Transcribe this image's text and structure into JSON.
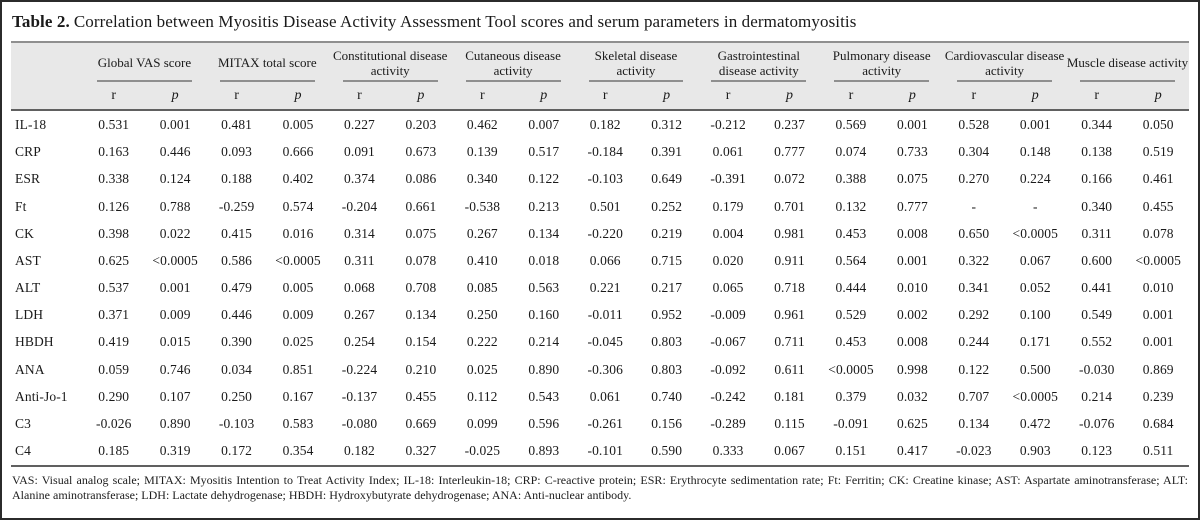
{
  "title": {
    "label": "Table 2.",
    "caption": "Correlation between Myositis Disease Activity Assessment Tool scores and serum parameters in dermatomyositis"
  },
  "colors": {
    "header_bg": "#e8e8e8",
    "rule_light": "#8f8f8f",
    "rule_dark": "#606060",
    "text": "#1a1a1a"
  },
  "table": {
    "groups": [
      "Global VAS score",
      "MITAX total score",
      "Constitutional disease activity",
      "Cutaneous disease activity",
      "Skeletal disease activity",
      "Gastrointestinal disease activity",
      "Pulmonary disease activity",
      "Cardiovascular disease activity",
      "Muscle disease activity"
    ],
    "subheaders": {
      "r": "r",
      "p": "p"
    },
    "rows": [
      {
        "label": "IL-18",
        "values": [
          "0.531",
          "0.001",
          "0.481",
          "0.005",
          "0.227",
          "0.203",
          "0.462",
          "0.007",
          "0.182",
          "0.312",
          "-0.212",
          "0.237",
          "0.569",
          "0.001",
          "0.528",
          "0.001",
          "0.344",
          "0.050"
        ]
      },
      {
        "label": "CRP",
        "values": [
          "0.163",
          "0.446",
          "0.093",
          "0.666",
          "0.091",
          "0.673",
          "0.139",
          "0.517",
          "-0.184",
          "0.391",
          "0.061",
          "0.777",
          "0.074",
          "0.733",
          "0.304",
          "0.148",
          "0.138",
          "0.519"
        ]
      },
      {
        "label": "ESR",
        "values": [
          "0.338",
          "0.124",
          "0.188",
          "0.402",
          "0.374",
          "0.086",
          "0.340",
          "0.122",
          "-0.103",
          "0.649",
          "-0.391",
          "0.072",
          "0.388",
          "0.075",
          "0.270",
          "0.224",
          "0.166",
          "0.461"
        ]
      },
      {
        "label": "Ft",
        "values": [
          "0.126",
          "0.788",
          "-0.259",
          "0.574",
          "-0.204",
          "0.661",
          "-0.538",
          "0.213",
          "0.501",
          "0.252",
          "0.179",
          "0.701",
          "0.132",
          "0.777",
          "-",
          "-",
          "0.340",
          "0.455"
        ]
      },
      {
        "label": "CK",
        "values": [
          "0.398",
          "0.022",
          "0.415",
          "0.016",
          "0.314",
          "0.075",
          "0.267",
          "0.134",
          "-0.220",
          "0.219",
          "0.004",
          "0.981",
          "0.453",
          "0.008",
          "0.650",
          "<0.0005",
          "0.311",
          "0.078"
        ]
      },
      {
        "label": "AST",
        "values": [
          "0.625",
          "<0.0005",
          "0.586",
          "<0.0005",
          "0.311",
          "0.078",
          "0.410",
          "0.018",
          "0.066",
          "0.715",
          "0.020",
          "0.911",
          "0.564",
          "0.001",
          "0.322",
          "0.067",
          "0.600",
          "<0.0005"
        ]
      },
      {
        "label": "ALT",
        "values": [
          "0.537",
          "0.001",
          "0.479",
          "0.005",
          "0.068",
          "0.708",
          "0.085",
          "0.563",
          "0.221",
          "0.217",
          "0.065",
          "0.718",
          "0.444",
          "0.010",
          "0.341",
          "0.052",
          "0.441",
          "0.010"
        ]
      },
      {
        "label": "LDH",
        "values": [
          "0.371",
          "0.009",
          "0.446",
          "0.009",
          "0.267",
          "0.134",
          "0.250",
          "0.160",
          "-0.011",
          "0.952",
          "-0.009",
          "0.961",
          "0.529",
          "0.002",
          "0.292",
          "0.100",
          "0.549",
          "0.001"
        ]
      },
      {
        "label": "HBDH",
        "values": [
          "0.419",
          "0.015",
          "0.390",
          "0.025",
          "0.254",
          "0.154",
          "0.222",
          "0.214",
          "-0.045",
          "0.803",
          "-0.067",
          "0.711",
          "0.453",
          "0.008",
          "0.244",
          "0.171",
          "0.552",
          "0.001"
        ]
      },
      {
        "label": "ANA",
        "values": [
          "0.059",
          "0.746",
          "0.034",
          "0.851",
          "-0.224",
          "0.210",
          "0.025",
          "0.890",
          "-0.306",
          "0.803",
          "-0.092",
          "0.611",
          "<0.0005",
          "0.998",
          "0.122",
          "0.500",
          "-0.030",
          "0.869"
        ]
      },
      {
        "label": "Anti-Jo-1",
        "values": [
          "0.290",
          "0.107",
          "0.250",
          "0.167",
          "-0.137",
          "0.455",
          "0.112",
          "0.543",
          "0.061",
          "0.740",
          "-0.242",
          "0.181",
          "0.379",
          "0.032",
          "0.707",
          "<0.0005",
          "0.214",
          "0.239"
        ]
      },
      {
        "label": "C3",
        "values": [
          "-0.026",
          "0.890",
          "-0.103",
          "0.583",
          "-0.080",
          "0.669",
          "0.099",
          "0.596",
          "-0.261",
          "0.156",
          "-0.289",
          "0.115",
          "-0.091",
          "0.625",
          "0.134",
          "0.472",
          "-0.076",
          "0.684"
        ]
      },
      {
        "label": "C4",
        "values": [
          "0.185",
          "0.319",
          "0.172",
          "0.354",
          "0.182",
          "0.327",
          "-0.025",
          "0.893",
          "-0.101",
          "0.590",
          "0.333",
          "0.067",
          "0.151",
          "0.417",
          "-0.023",
          "0.903",
          "0.123",
          "0.511"
        ]
      }
    ]
  },
  "footnote": "VAS: Visual analog scale; MITAX: Myositis Intention to Treat Activity Index; IL-18: Interleukin-18; CRP: C-reactive protein; ESR: Erythrocyte sedimentation rate; Ft: Ferritin; CK: Creatine kinase; AST: Aspartate aminotransferase; ALT: Alanine aminotransferase; LDH: Lactate dehydrogenase; HBDH: Hydroxybutyrate dehydrogenase; ANA: Anti-nuclear antibody."
}
